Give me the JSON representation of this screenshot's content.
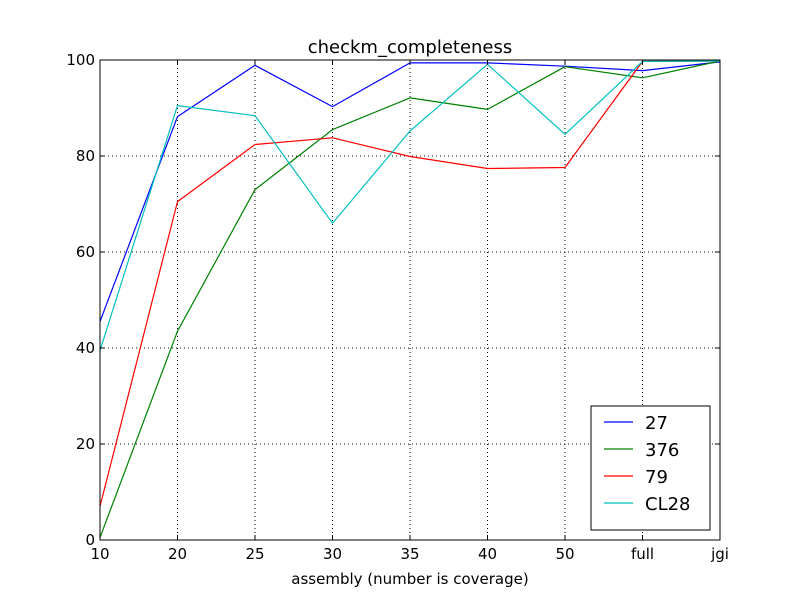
{
  "chart_data": {
    "type": "line",
    "title": "checkm_completeness",
    "xlabel": "assembly (number is coverage)",
    "ylabel": "",
    "categories": [
      "10",
      "20",
      "25",
      "30",
      "35",
      "40",
      "50",
      "full",
      "jgi"
    ],
    "ylim": [
      0,
      100
    ],
    "yticks": [
      "0",
      "20",
      "40",
      "60",
      "80",
      "100"
    ],
    "grid": true,
    "legend_position": "lower-right",
    "series": [
      {
        "name": "27",
        "color": "#0000ff",
        "values": [
          45.5,
          88.2,
          98.9,
          90.3,
          99.4,
          99.4,
          98.7,
          97.8,
          99.6
        ]
      },
      {
        "name": "376",
        "color": "#008000",
        "values": [
          0.5,
          43.5,
          73.0,
          85.5,
          92.1,
          89.7,
          98.6,
          96.3,
          99.8
        ]
      },
      {
        "name": "79",
        "color": "#ff0000",
        "values": [
          7.0,
          70.5,
          82.4,
          83.8,
          79.9,
          77.4,
          77.6,
          99.7,
          99.8
        ]
      },
      {
        "name": "CL28",
        "color": "#00bfbf",
        "values": [
          39.5,
          90.5,
          88.4,
          66.0,
          85.2,
          99.1,
          84.5,
          99.7,
          99.8
        ]
      }
    ]
  }
}
